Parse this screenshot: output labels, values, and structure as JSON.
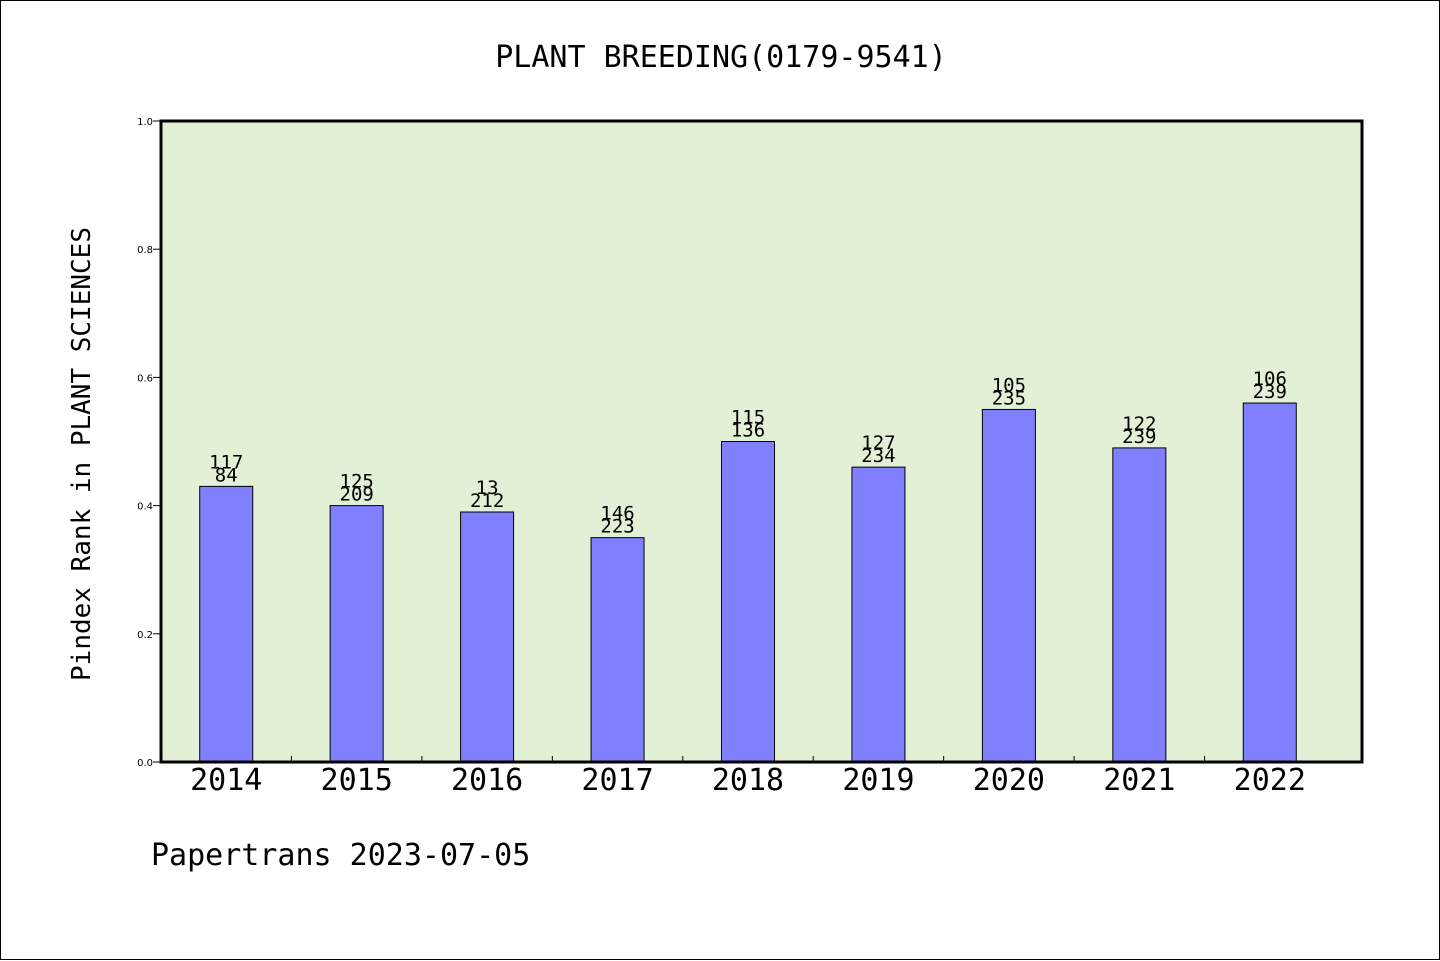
{
  "chart_data": {
    "type": "bar",
    "title": "PLANT BREEDING(0179-9541)",
    "ylabel": "Pindex Rank in PLANT SCIENCES",
    "xlabel": "",
    "ylim": [
      0,
      1.0
    ],
    "yticks": [
      "0.0",
      "0.2",
      "0.4",
      "0.6",
      "0.8",
      "1.0"
    ],
    "ytick_values": [
      0,
      0.2,
      0.4,
      0.6,
      0.8,
      1.0
    ],
    "categories": [
      "2014",
      "2015",
      "2016",
      "2017",
      "2018",
      "2019",
      "2020",
      "2021",
      "2022"
    ],
    "values": [
      0.43,
      0.4,
      0.39,
      0.35,
      0.5,
      0.46,
      0.55,
      0.49,
      0.56
    ],
    "label_top": [
      "117",
      "125",
      "13",
      "146",
      "115",
      "127",
      "105",
      "122",
      "106"
    ],
    "label_bottom": [
      "84",
      "209",
      "212",
      "223",
      "136",
      "234",
      "235",
      "239",
      "239"
    ],
    "grid": false,
    "legend": "none"
  },
  "footer": "Papertrans 2023-07-05",
  "colors": {
    "plot_background": "#e2f0d6",
    "bar_fill": "#8080ff",
    "bar_stroke": "#000000",
    "text": "#000000"
  }
}
